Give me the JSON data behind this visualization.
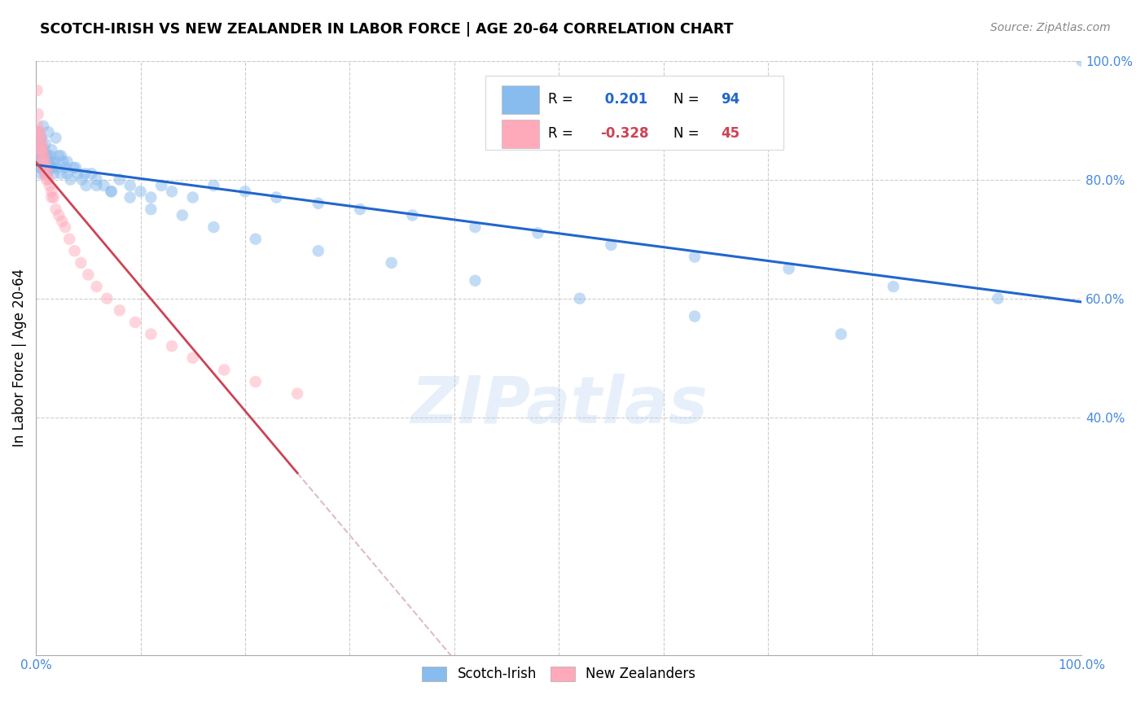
{
  "title": "SCOTCH-IRISH VS NEW ZEALANDER IN LABOR FORCE | AGE 20-64 CORRELATION CHART",
  "source": "Source: ZipAtlas.com",
  "ylabel": "In Labor Force | Age 20-64",
  "xlim": [
    0.0,
    1.0
  ],
  "ylim": [
    0.0,
    1.0
  ],
  "blue_R": 0.201,
  "blue_N": 94,
  "pink_R": -0.328,
  "pink_N": 45,
  "blue_color": "#88BBEE",
  "pink_color": "#FFAABB",
  "blue_line_color": "#2266CC",
  "pink_line_color": "#CC4455",
  "pink_line_dashed_color": "#DDBBCC",
  "watermark": "ZIPatlas",
  "blue_scatter_x": [
    0.001,
    0.002,
    0.002,
    0.003,
    0.003,
    0.003,
    0.004,
    0.004,
    0.004,
    0.005,
    0.005,
    0.005,
    0.005,
    0.006,
    0.006,
    0.006,
    0.007,
    0.007,
    0.008,
    0.008,
    0.008,
    0.009,
    0.009,
    0.01,
    0.01,
    0.011,
    0.011,
    0.012,
    0.013,
    0.014,
    0.015,
    0.016,
    0.017,
    0.018,
    0.02,
    0.022,
    0.024,
    0.026,
    0.028,
    0.03,
    0.033,
    0.036,
    0.04,
    0.044,
    0.048,
    0.053,
    0.058,
    0.065,
    0.072,
    0.08,
    0.09,
    0.1,
    0.11,
    0.12,
    0.13,
    0.15,
    0.17,
    0.2,
    0.23,
    0.27,
    0.31,
    0.36,
    0.42,
    0.48,
    0.55,
    0.63,
    0.72,
    0.82,
    0.92,
    1.0,
    0.003,
    0.005,
    0.007,
    0.009,
    0.012,
    0.015,
    0.019,
    0.024,
    0.03,
    0.038,
    0.047,
    0.058,
    0.072,
    0.09,
    0.11,
    0.14,
    0.17,
    0.21,
    0.27,
    0.34,
    0.42,
    0.52,
    0.63,
    0.77
  ],
  "blue_scatter_y": [
    0.87,
    0.88,
    0.85,
    0.86,
    0.84,
    0.83,
    0.87,
    0.85,
    0.82,
    0.86,
    0.84,
    0.83,
    0.81,
    0.85,
    0.83,
    0.82,
    0.84,
    0.82,
    0.85,
    0.83,
    0.82,
    0.84,
    0.81,
    0.83,
    0.82,
    0.84,
    0.81,
    0.83,
    0.82,
    0.84,
    0.83,
    0.82,
    0.81,
    0.83,
    0.82,
    0.84,
    0.81,
    0.83,
    0.82,
    0.81,
    0.8,
    0.82,
    0.81,
    0.8,
    0.79,
    0.81,
    0.8,
    0.79,
    0.78,
    0.8,
    0.79,
    0.78,
    0.77,
    0.79,
    0.78,
    0.77,
    0.79,
    0.78,
    0.77,
    0.76,
    0.75,
    0.74,
    0.72,
    0.71,
    0.69,
    0.67,
    0.65,
    0.62,
    0.6,
    1.0,
    0.88,
    0.87,
    0.89,
    0.86,
    0.88,
    0.85,
    0.87,
    0.84,
    0.83,
    0.82,
    0.81,
    0.79,
    0.78,
    0.77,
    0.75,
    0.74,
    0.72,
    0.7,
    0.68,
    0.66,
    0.63,
    0.6,
    0.57,
    0.54
  ],
  "pink_scatter_x": [
    0.001,
    0.002,
    0.002,
    0.003,
    0.003,
    0.004,
    0.004,
    0.005,
    0.005,
    0.006,
    0.006,
    0.007,
    0.007,
    0.008,
    0.008,
    0.009,
    0.01,
    0.011,
    0.012,
    0.013,
    0.015,
    0.017,
    0.019,
    0.022,
    0.025,
    0.028,
    0.032,
    0.037,
    0.043,
    0.05,
    0.058,
    0.068,
    0.08,
    0.095,
    0.11,
    0.13,
    0.15,
    0.18,
    0.21,
    0.25,
    0.003,
    0.005,
    0.007,
    0.01,
    0.015
  ],
  "pink_scatter_y": [
    0.95,
    0.91,
    0.89,
    0.88,
    0.86,
    0.88,
    0.85,
    0.87,
    0.84,
    0.86,
    0.83,
    0.85,
    0.82,
    0.84,
    0.81,
    0.83,
    0.82,
    0.81,
    0.8,
    0.79,
    0.78,
    0.77,
    0.75,
    0.74,
    0.73,
    0.72,
    0.7,
    0.68,
    0.66,
    0.64,
    0.62,
    0.6,
    0.58,
    0.56,
    0.54,
    0.52,
    0.5,
    0.48,
    0.46,
    0.44,
    0.87,
    0.85,
    0.83,
    0.8,
    0.77
  ]
}
